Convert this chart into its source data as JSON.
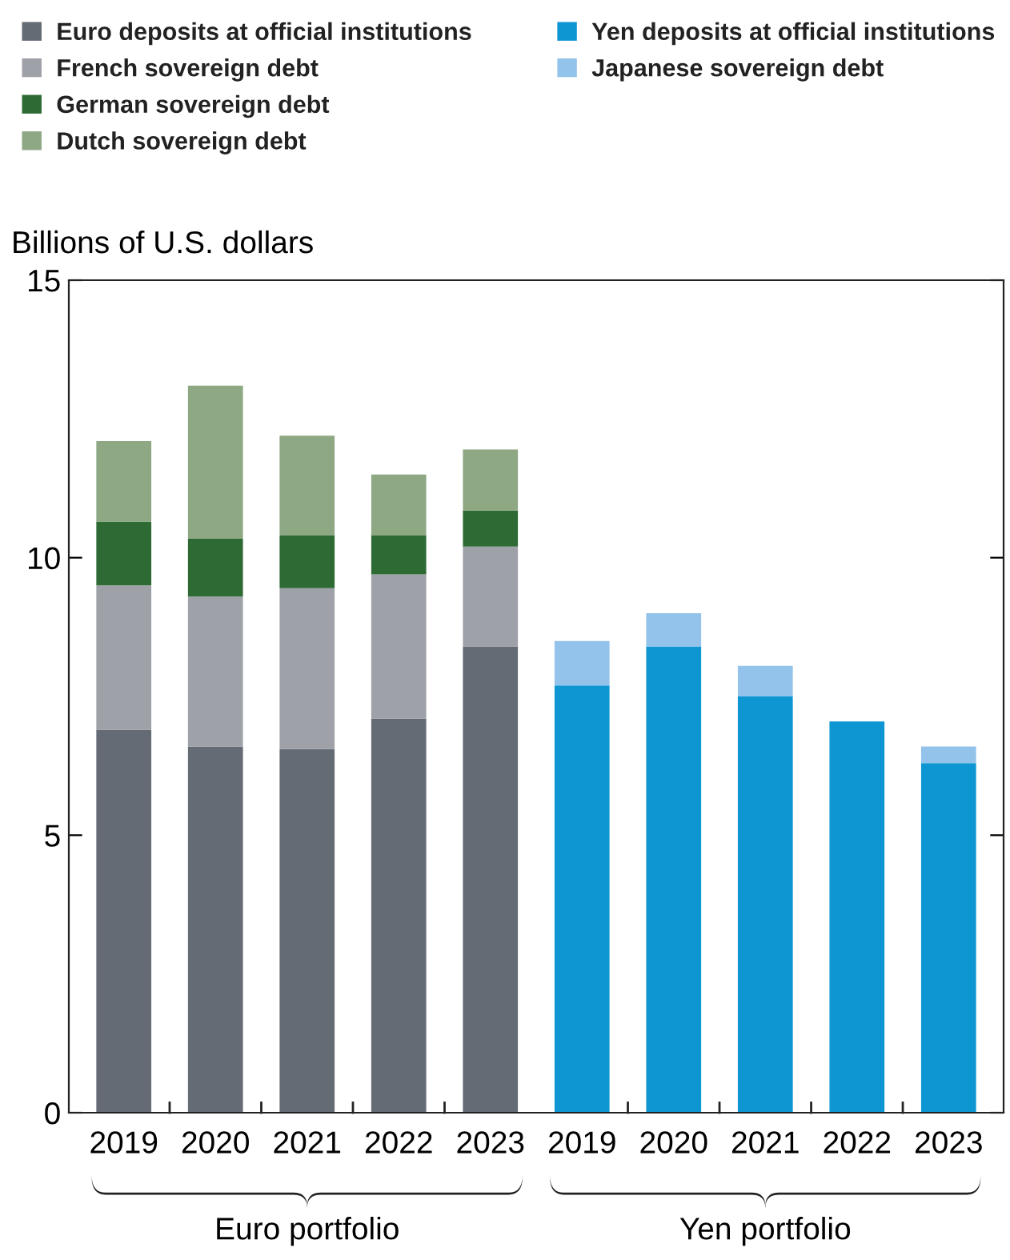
{
  "chart_data": {
    "type": "bar",
    "stacked": true,
    "ylabel": "Billions of U.S. dollars",
    "categories": [
      "2019",
      "2020",
      "2021",
      "2022",
      "2023",
      "2019",
      "2020",
      "2021",
      "2022",
      "2023"
    ],
    "series": [
      {
        "name": "Euro deposits at official institutions",
        "color": "#646b75",
        "values": [
          6.9,
          6.6,
          6.55,
          7.1,
          8.4,
          null,
          null,
          null,
          null,
          null
        ]
      },
      {
        "name": "French sovereign debt",
        "color": "#9fa1a8",
        "values": [
          2.6,
          2.7,
          2.9,
          2.6,
          1.8,
          null,
          null,
          null,
          null,
          null
        ]
      },
      {
        "name": "German sovereign debt",
        "color": "#2e6b34",
        "values": [
          1.15,
          1.05,
          0.95,
          0.7,
          0.65,
          null,
          null,
          null,
          null,
          null
        ]
      },
      {
        "name": "Dutch sovereign debt",
        "color": "#8ea884",
        "values": [
          1.45,
          2.75,
          1.8,
          1.1,
          1.1,
          null,
          null,
          null,
          null,
          null
        ]
      },
      {
        "name": "Yen deposits at official institutions",
        "color": "#0e96d3",
        "values": [
          null,
          null,
          null,
          null,
          null,
          7.7,
          8.4,
          7.5,
          7.05,
          6.3
        ]
      },
      {
        "name": "Japanese sovereign debt",
        "color": "#93c3ea",
        "values": [
          null,
          null,
          null,
          null,
          null,
          0.8,
          0.6,
          0.55,
          null,
          0.3
        ]
      }
    ],
    "ylim": [
      0,
      15
    ],
    "yticks": [
      0,
      5,
      10,
      15
    ],
    "legend": "top left",
    "grid": false,
    "annotations": [
      "Euro portfolio",
      "Yen portfolio"
    ]
  }
}
